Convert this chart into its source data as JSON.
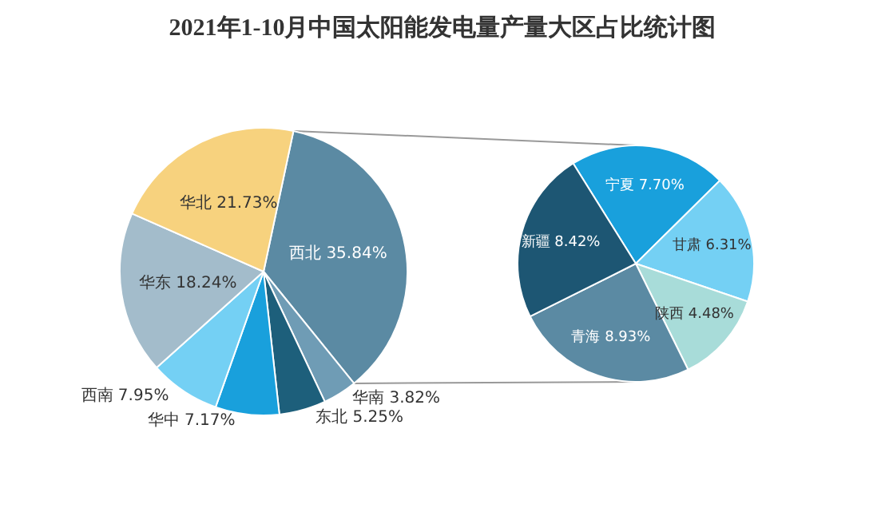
{
  "chart_data": [
    {
      "type": "pie",
      "title": "2021年1-10月中国太阳能发电量产量大区占比统计图",
      "categories": [
        "西北",
        "华南",
        "东北",
        "华中",
        "西南",
        "华东",
        "华北"
      ],
      "values": [
        35.84,
        3.82,
        5.25,
        7.17,
        7.95,
        18.24,
        21.73
      ],
      "colors": [
        "#5b8aa3",
        "#6f9cb5",
        "#1d5f7b",
        "#19a0dc",
        "#74d0f4",
        "#a3bccb",
        "#f7d27e"
      ],
      "value_labels": [
        "35.84%",
        "3.82%",
        "5.25%",
        "7.17%",
        "7.95%",
        "18.24%",
        "21.73%"
      ]
    },
    {
      "type": "pie",
      "categories": [
        "宁夏",
        "甘肃",
        "陕西",
        "青海",
        "新疆"
      ],
      "values": [
        7.7,
        6.31,
        4.48,
        8.93,
        8.42
      ],
      "colors": [
        "#19a0dc",
        "#74d0f4",
        "#a8dcd9",
        "#5b8aa3",
        "#1d5673"
      ],
      "value_labels": [
        "7.70%",
        "6.31%",
        "4.48%",
        "8.93%",
        "8.42%"
      ]
    }
  ]
}
